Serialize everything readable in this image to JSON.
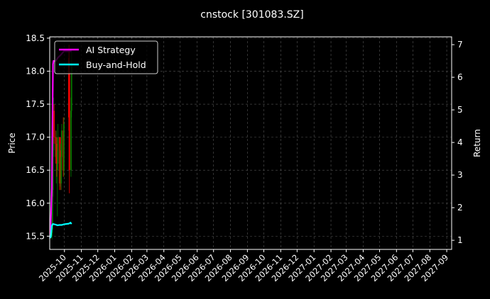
{
  "chart_data": {
    "type": "candlestick+line",
    "title": "cnstock [301083.SZ]",
    "ylabel_left": "Price",
    "ylabel_right": "Return",
    "xlim": [
      "2025-09-04",
      "2027-09-10"
    ],
    "ylim_left": [
      15.3,
      18.52
    ],
    "ylim_right": [
      0.72,
      7.24
    ],
    "grid": true,
    "legend_placement": "top-left",
    "x_ticks": [
      "2025-10",
      "2025-11",
      "2025-12",
      "2026-01",
      "2026-02",
      "2026-03",
      "2026-04",
      "2026-05",
      "2026-06",
      "2026-07",
      "2026-08",
      "2026-09",
      "2026-10",
      "2026-11",
      "2026-12",
      "2027-01",
      "2027-02",
      "2027-03",
      "2027-04",
      "2027-05",
      "2027-06",
      "2027-07",
      "2027-08",
      "2027-09"
    ],
    "y_ticks_left": [
      15.5,
      16.0,
      16.5,
      17.0,
      17.5,
      18.0,
      18.5
    ],
    "y_ticks_right": [
      1,
      2,
      3,
      4,
      5,
      6,
      7
    ],
    "candles": [
      {
        "date": "2025-09-08",
        "open": 15.5,
        "high": 15.7,
        "low": 15.45,
        "close": 15.6
      },
      {
        "date": "2025-09-09",
        "open": 15.6,
        "high": 16.3,
        "low": 15.55,
        "close": 16.2
      },
      {
        "date": "2025-09-10",
        "open": 16.2,
        "high": 16.9,
        "low": 16.1,
        "close": 16.8
      },
      {
        "date": "2025-09-11",
        "open": 16.8,
        "high": 17.6,
        "low": 16.7,
        "close": 17.4
      },
      {
        "date": "2025-09-12",
        "open": 17.4,
        "high": 17.5,
        "low": 16.9,
        "close": 17.0
      },
      {
        "date": "2025-09-15",
        "open": 17.0,
        "high": 17.1,
        "low": 16.6,
        "close": 16.7
      },
      {
        "date": "2025-09-16",
        "open": 16.7,
        "high": 17.1,
        "low": 16.3,
        "close": 16.9
      },
      {
        "date": "2025-09-17",
        "open": 16.9,
        "high": 17.0,
        "low": 16.4,
        "close": 16.5
      },
      {
        "date": "2025-09-18",
        "open": 16.5,
        "high": 16.8,
        "low": 15.8,
        "close": 16.6
      },
      {
        "date": "2025-09-19",
        "open": 16.6,
        "high": 17.2,
        "low": 16.5,
        "close": 17.0
      },
      {
        "date": "2025-09-22",
        "open": 17.0,
        "high": 17.0,
        "low": 16.2,
        "close": 16.3
      },
      {
        "date": "2025-09-23",
        "open": 16.3,
        "high": 16.9,
        "low": 16.25,
        "close": 16.8
      },
      {
        "date": "2025-09-24",
        "open": 16.8,
        "high": 17.0,
        "low": 16.2,
        "close": 16.3
      },
      {
        "date": "2025-09-25",
        "open": 16.3,
        "high": 16.9,
        "low": 16.2,
        "close": 16.7
      },
      {
        "date": "2025-09-26",
        "open": 16.7,
        "high": 17.2,
        "low": 16.5,
        "close": 17.1
      },
      {
        "date": "2025-09-29",
        "open": 17.1,
        "high": 17.3,
        "low": 16.4,
        "close": 16.5
      },
      {
        "date": "2025-09-30",
        "open": 16.5,
        "high": 17.3,
        "low": 16.4,
        "close": 17.2
      },
      {
        "date": "2025-10-09",
        "open": 18.2,
        "high": 18.4,
        "low": 17.1,
        "close": 17.3
      },
      {
        "date": "2025-10-10",
        "open": 18.0,
        "high": 18.4,
        "low": 16.15,
        "close": 16.5
      },
      {
        "date": "2025-10-13",
        "open": 16.5,
        "high": 17.6,
        "low": 16.4,
        "close": 17.4
      },
      {
        "date": "2025-10-14",
        "open": 17.4,
        "high": 18.3,
        "low": 17.3,
        "close": 18.1
      }
    ],
    "series": [
      {
        "name": "AI Strategy",
        "color": "#ff00ff",
        "dates": [
          "2025-09-04",
          "2025-09-05",
          "2025-09-08",
          "2025-09-09",
          "2025-09-10",
          "2025-09-11",
          "2025-09-15",
          "2025-09-19",
          "2025-09-25",
          "2025-09-30",
          "2025-10-10",
          "2025-10-14"
        ],
        "values": [
          1.07,
          1.1,
          2.6,
          4.6,
          6.4,
          6.5,
          6.5,
          6.6,
          6.7,
          6.8,
          6.8,
          6.8
        ]
      },
      {
        "name": "Buy-and-Hold",
        "color": "#00ffff",
        "dates": [
          "2025-09-04",
          "2025-09-06",
          "2025-09-08",
          "2025-09-10",
          "2025-09-15",
          "2025-09-18",
          "2025-09-22",
          "2025-09-26",
          "2025-09-30",
          "2025-10-09",
          "2025-10-12",
          "2025-10-14"
        ],
        "values": [
          1.07,
          1.1,
          1.45,
          1.5,
          1.48,
          1.46,
          1.47,
          1.47,
          1.49,
          1.51,
          1.54,
          1.5
        ]
      }
    ],
    "colors": {
      "up": "#008000",
      "down": "#ff0000"
    }
  }
}
